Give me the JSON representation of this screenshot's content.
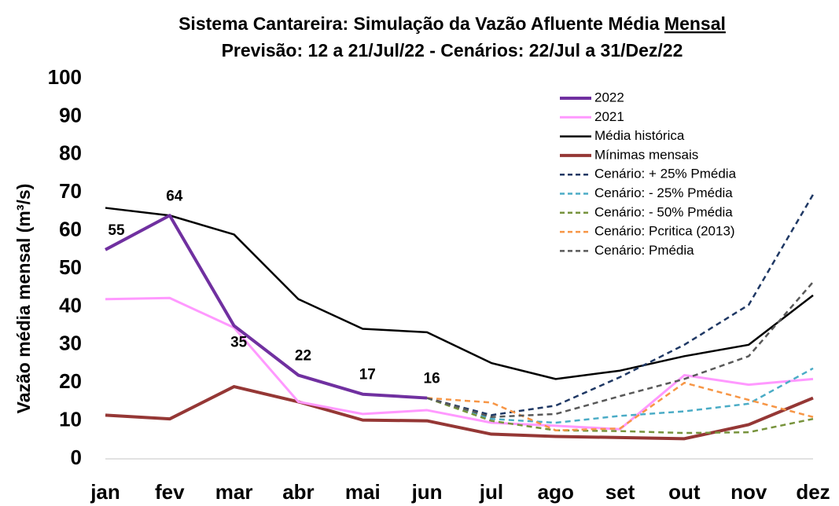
{
  "chart_data": {
    "type": "line",
    "title": "Sistema Cantareira: Simulação da Vazão Afluente Média",
    "title_emphasis": "Mensal",
    "subtitle": "Previsão: 12 a 21/Jul/22 - Cenários: 22/Jul a 31/Dez/22",
    "y_label": "Vazão média mensal (m³/s)",
    "categories": [
      "jan",
      "fev",
      "mar",
      "abr",
      "mai",
      "jun",
      "jul",
      "ago",
      "set",
      "out",
      "nov",
      "dez"
    ],
    "ylim": [
      0,
      100
    ],
    "yticks": [
      0,
      10,
      20,
      30,
      40,
      50,
      60,
      70,
      80,
      90,
      100
    ],
    "grid": false,
    "legend": "upper-right",
    "series": [
      {
        "name": "2022",
        "color": "#7030a0",
        "width": 4,
        "dashed": false,
        "data_labels": true,
        "values": [
          55,
          64,
          35,
          22,
          17,
          16,
          null,
          null,
          null,
          null,
          null,
          null
        ]
      },
      {
        "name": "2021",
        "color": "#ff99ff",
        "width": 3,
        "dashed": false,
        "values": [
          42,
          42.3,
          34.5,
          15,
          11.8,
          12.8,
          9.5,
          8.7,
          7.8,
          22,
          19.5,
          21
        ]
      },
      {
        "name": "Média histórica",
        "color": "#000000",
        "width": 2.5,
        "dashed": false,
        "values": [
          66,
          64,
          59,
          42,
          34.2,
          33.3,
          25.2,
          21,
          23.2,
          27,
          30,
          43
        ]
      },
      {
        "name": "Mínimas mensais",
        "color": "#953735",
        "width": 4,
        "dashed": false,
        "values": [
          11.5,
          10.5,
          19,
          15,
          10.2,
          10,
          6.5,
          5.9,
          5.6,
          5.3,
          9,
          16
        ]
      },
      {
        "name": "Cenário: + 25% Pmédia",
        "color": "#1f3864",
        "width": 2.5,
        "dashed": true,
        "values": [
          null,
          null,
          null,
          null,
          null,
          16,
          11.5,
          14,
          21.5,
          30,
          40.5,
          69.5
        ]
      },
      {
        "name": "Cenário: - 25% Pmédia",
        "color": "#4bacc6",
        "width": 2.5,
        "dashed": true,
        "values": [
          null,
          null,
          null,
          null,
          null,
          16,
          10.5,
          9.5,
          11.3,
          12.5,
          14.5,
          23.8
        ]
      },
      {
        "name": "Cenário: - 50% Pmédia",
        "color": "#77933c",
        "width": 2.5,
        "dashed": true,
        "values": [
          null,
          null,
          null,
          null,
          null,
          16,
          10,
          7.5,
          7.3,
          6.8,
          7,
          10.5
        ]
      },
      {
        "name": "Cenário: Pcritica (2013)",
        "color": "#f79646",
        "width": 2.5,
        "dashed": true,
        "values": [
          null,
          null,
          null,
          null,
          null,
          16,
          14.8,
          7.5,
          8,
          20,
          15.5,
          11
        ]
      },
      {
        "name": "Cenário: Pmédia",
        "color": "#595959",
        "width": 2.5,
        "dashed": true,
        "values": [
          null,
          null,
          null,
          null,
          null,
          16,
          11,
          11.8,
          16.5,
          21,
          27,
          46.5
        ]
      }
    ]
  }
}
